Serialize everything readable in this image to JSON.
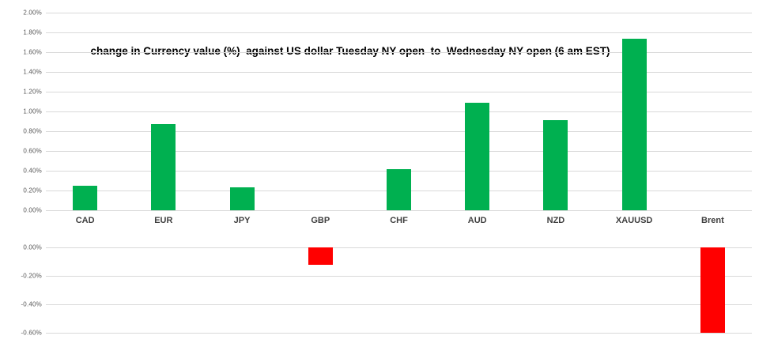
{
  "chart_data": {
    "type": "bar",
    "title": "change in Currency value (%)  against US dollar Tuesday NY open  to  Wednesday NY open (6 am EST)",
    "categories": [
      "CAD",
      "EUR",
      "JPY",
      "GBP",
      "CHF",
      "AUD",
      "NZD",
      "XAUUSD",
      "Brent"
    ],
    "values": [
      0.25,
      0.87,
      0.23,
      -0.12,
      0.42,
      1.09,
      0.91,
      1.74,
      -0.6
    ],
    "unit": "%",
    "y_axis_top": {
      "ticks": [
        "2.00%",
        "1.80%",
        "1.60%",
        "1.40%",
        "1.20%",
        "1.00%",
        "0.80%",
        "0.60%",
        "0.40%",
        "0.20%",
        "0.00%"
      ],
      "min": 0.0,
      "max": 2.0
    },
    "y_axis_bottom": {
      "ticks": [
        "0.00%",
        "-0.20%",
        "-0.40%",
        "-0.60%"
      ],
      "min": -0.6,
      "max": 0.0
    },
    "grid": true,
    "legend": false,
    "colors": {
      "positive": "#00B050",
      "negative": "#FF0000",
      "gridline": "#D9D9D9",
      "tick_label": "#595959",
      "category_label": "#404040",
      "title": "#000000",
      "background": "#FFFFFF"
    }
  }
}
